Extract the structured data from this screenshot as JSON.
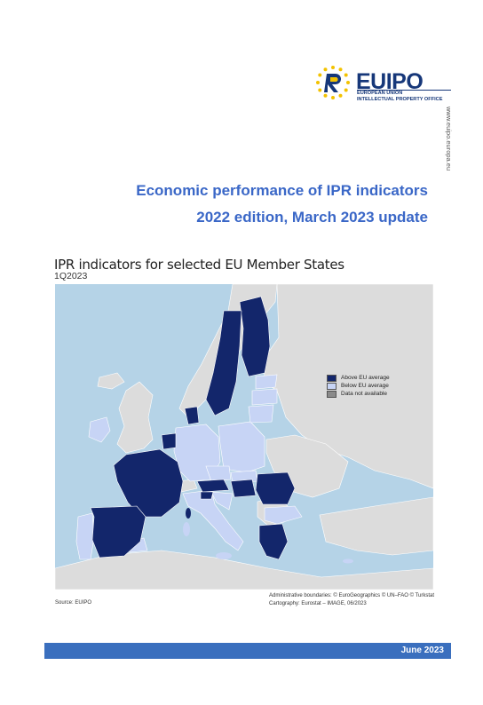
{
  "logo": {
    "eu": "EU",
    "ipo": "IPO",
    "sub_line1": "EUROPEAN UNION",
    "sub_line2": "INTELLECTUAL PROPERTY OFFICE"
  },
  "side_url": "www.euipo.europa.eu",
  "title": {
    "line1": "Economic performance of IPR indicators",
    "line2": "2022 edition, March 2023 update"
  },
  "map": {
    "heading": "IPR indicators for selected EU Member States",
    "period": "1Q2023",
    "legend": [
      {
        "label": "Above EU average",
        "color": "#13266b"
      },
      {
        "label": "Below EU average",
        "color": "#c7d4f5"
      },
      {
        "label": "Data not available",
        "color": "#8a8a8a"
      }
    ],
    "colors": {
      "sea": "#b5d3e7",
      "non_eu": "#dcdcdc"
    },
    "credits_line1": "Administrative boundaries: © EuroGeographics © UN–FAO © Turkstat",
    "credits_line2": "Cartography: Eurostat – IMAGE, 06/2023",
    "source": "Source: EUIPO"
  },
  "footer": {
    "date": "June 2023",
    "color": "#3a6fbe"
  }
}
